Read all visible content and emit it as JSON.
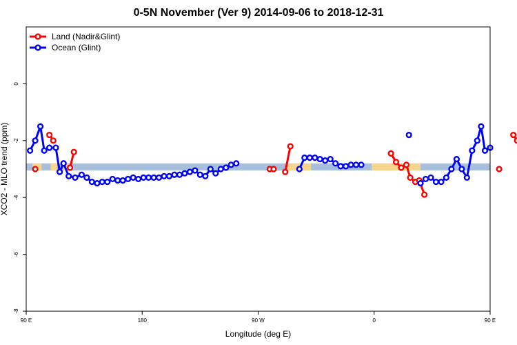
{
  "chart_data": {
    "type": "line",
    "title": "0-5N November (Ver 9)   2014-09-06 to 2018-12-31",
    "xlabel": "Longitude (deg E)",
    "ylabel": "XCO2 - MLO trend (ppm)",
    "xlim": [
      90,
      450
    ],
    "ylim": [
      -8,
      2
    ],
    "x_ticks": [
      {
        "value": 90,
        "label": "90 E"
      },
      {
        "value": 180,
        "label": "180"
      },
      {
        "value": 270,
        "label": "90 W"
      },
      {
        "value": 360,
        "label": "0"
      },
      {
        "value": 450,
        "label": "90 E"
      },
      {
        "value": 540,
        "label": "180"
      }
    ],
    "y_ticks": [
      {
        "value": -8,
        "label": "-8"
      },
      {
        "value": -6,
        "label": "-6"
      },
      {
        "value": -4,
        "label": "-4"
      },
      {
        "value": -2,
        "label": "-2"
      },
      {
        "value": 0,
        "label": "0"
      }
    ],
    "band": {
      "y_low": -3.05,
      "y_high": -2.8,
      "color": "#a7bfdc",
      "highlight_color": "#f6d58c"
    },
    "band_highlights": [
      [
        95,
        102
      ],
      [
        109,
        114
      ],
      [
        119,
        123
      ],
      [
        292,
        311
      ],
      [
        358,
        396
      ],
      [
        463,
        470
      ],
      [
        478,
        484
      ],
      [
        488,
        492
      ]
    ],
    "legend_position": "top-left",
    "series": [
      {
        "name": "Land (Nadir&Glint)",
        "color": "#ff0000",
        "segments": [
          [
            [
              97,
              -3.0
            ]
          ],
          [
            [
              108,
              -1.8
            ],
            [
              111,
              -2.0
            ]
          ],
          [
            [
              124,
              -2.95
            ],
            [
              127,
              -2.4
            ]
          ],
          [
            [
              279,
              -3.0
            ],
            [
              282,
              -3.0
            ]
          ],
          [
            [
              291,
              -3.1
            ],
            [
              295,
              -2.2
            ]
          ],
          [
            [
              373,
              -2.45
            ],
            [
              377,
              -2.75
            ],
            [
              381,
              -2.95
            ],
            [
              385,
              -2.85
            ],
            [
              388,
              -3.3
            ],
            [
              392,
              -3.45
            ],
            [
              395,
              -3.4
            ],
            [
              399,
              -3.9
            ]
          ],
          [
            [
              457,
              -3.0
            ]
          ],
          [
            [
              468,
              -1.8
            ],
            [
              471,
              -2.0
            ]
          ],
          [
            [
              484,
              -2.95
            ],
            [
              487,
              -2.4
            ]
          ]
        ]
      },
      {
        "name": "Ocean (Glint)",
        "color": "#0000ff",
        "segments": [
          [
            [
              93,
              -2.35
            ],
            [
              97,
              -2.0
            ],
            [
              101,
              -1.5
            ],
            [
              104,
              -2.35
            ],
            [
              108,
              -2.25
            ],
            [
              113,
              -2.25
            ],
            [
              116,
              -3.1
            ],
            [
              119,
              -2.8
            ],
            [
              123,
              -3.25
            ],
            [
              128,
              -3.3
            ],
            [
              133,
              -3.2
            ],
            [
              137,
              -3.3
            ],
            [
              141,
              -3.45
            ],
            [
              145,
              -3.5
            ],
            [
              149,
              -3.45
            ],
            [
              153,
              -3.45
            ],
            [
              157,
              -3.35
            ],
            [
              161,
              -3.4
            ],
            [
              165,
              -3.4
            ],
            [
              169,
              -3.35
            ],
            [
              173,
              -3.3
            ],
            [
              177,
              -3.35
            ],
            [
              181,
              -3.3
            ],
            [
              185,
              -3.3
            ],
            [
              189,
              -3.3
            ],
            [
              193,
              -3.3
            ],
            [
              197,
              -3.25
            ],
            [
              201,
              -3.25
            ],
            [
              205,
              -3.2
            ],
            [
              209,
              -3.2
            ],
            [
              213,
              -3.15
            ],
            [
              217,
              -3.1
            ],
            [
              221,
              -3.05
            ],
            [
              225,
              -3.2
            ],
            [
              229,
              -3.25
            ],
            [
              233,
              -3.0
            ],
            [
              237,
              -3.15
            ],
            [
              241,
              -3.0
            ],
            [
              245,
              -2.95
            ],
            [
              249,
              -2.85
            ],
            [
              253,
              -2.8
            ]
          ],
          [
            [
              302,
              -3.0
            ],
            [
              306,
              -2.6
            ],
            [
              310,
              -2.6
            ],
            [
              314,
              -2.6
            ],
            [
              318,
              -2.65
            ],
            [
              322,
              -2.7
            ],
            [
              326,
              -2.65
            ],
            [
              330,
              -2.8
            ],
            [
              334,
              -2.9
            ],
            [
              338,
              -2.9
            ],
            [
              342,
              -2.85
            ],
            [
              346,
              -2.85
            ],
            [
              350,
              -2.85
            ]
          ],
          [
            [
              387,
              -1.8
            ]
          ],
          [
            [
              396,
              -3.5
            ],
            [
              400,
              -3.35
            ],
            [
              404,
              -3.3
            ],
            [
              408,
              -3.45
            ],
            [
              412,
              -3.45
            ],
            [
              416,
              -3.3
            ],
            [
              420,
              -3.0
            ],
            [
              424,
              -2.65
            ],
            [
              428,
              -3.0
            ],
            [
              432,
              -3.3
            ],
            [
              436,
              -2.35
            ],
            [
              440,
              -2.0
            ],
            [
              443,
              -1.5
            ],
            [
              446,
              -2.35
            ],
            [
              450,
              -2.25
            ]
          ]
        ]
      }
    ]
  }
}
